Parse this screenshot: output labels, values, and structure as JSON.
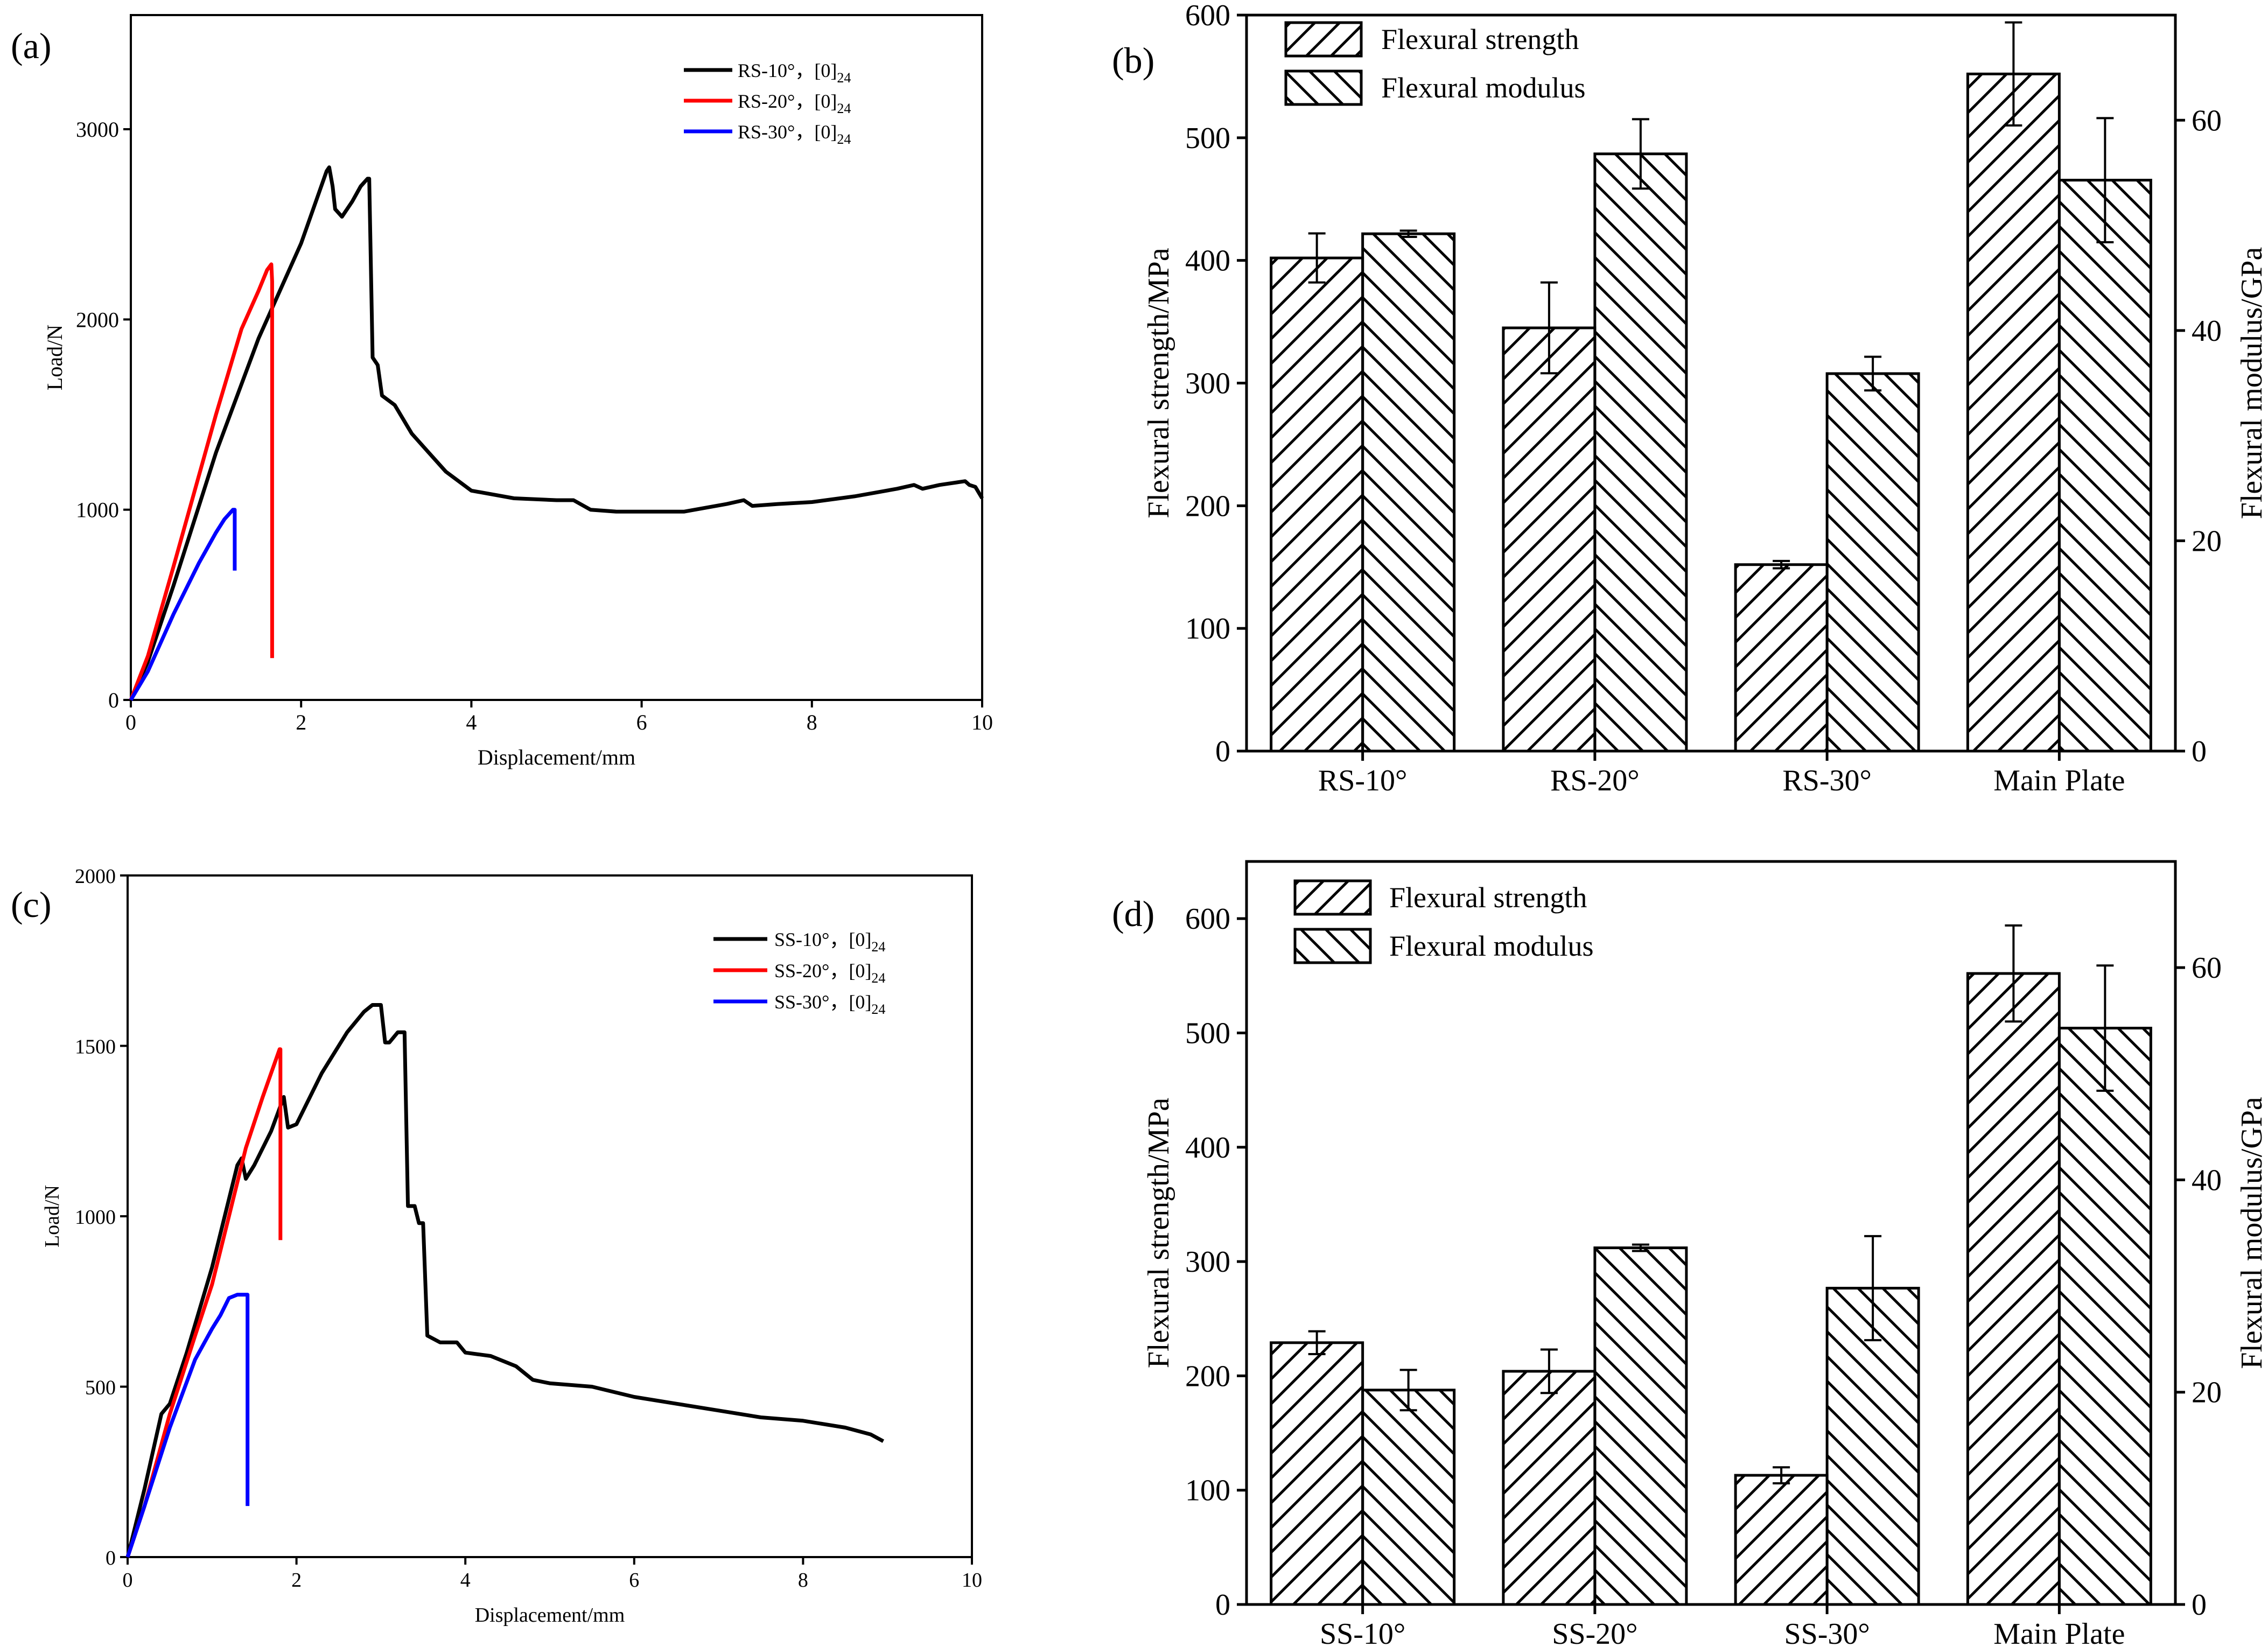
{
  "colors": {
    "black": "#000000",
    "red": "#ff0000",
    "blue": "#0000ff",
    "background": "#ffffff"
  },
  "chart_data": [
    {
      "id": "a",
      "panel_label": "(a)",
      "type": "line",
      "xlabel": "Displacement/mm",
      "ylabel": "Load/N",
      "xlim": [
        0,
        10
      ],
      "ylim": [
        0,
        3600
      ],
      "x_ticks": [
        0,
        2,
        4,
        6,
        8,
        10
      ],
      "y_ticks": [
        0,
        1000,
        2000,
        3000
      ],
      "legend_position": "top-right",
      "series": [
        {
          "name": "RS-10°",
          "layup": "[0]",
          "layup_sub": "24",
          "color": "#000000",
          "points": [
            [
              0,
              0
            ],
            [
              0.2,
              200
            ],
            [
              0.5,
              600
            ],
            [
              1,
              1300
            ],
            [
              1.5,
              1900
            ],
            [
              2,
              2400
            ],
            [
              2.3,
              2780
            ],
            [
              2.33,
              2800
            ],
            [
              2.37,
              2700
            ],
            [
              2.4,
              2580
            ],
            [
              2.48,
              2540
            ],
            [
              2.6,
              2620
            ],
            [
              2.7,
              2700
            ],
            [
              2.78,
              2740
            ],
            [
              2.8,
              2740
            ],
            [
              2.84,
              1800
            ],
            [
              2.9,
              1760
            ],
            [
              2.95,
              1600
            ],
            [
              3.1,
              1550
            ],
            [
              3.3,
              1400
            ],
            [
              3.5,
              1300
            ],
            [
              3.7,
              1200
            ],
            [
              4,
              1100
            ],
            [
              4.5,
              1060
            ],
            [
              5,
              1050
            ],
            [
              5.2,
              1050
            ],
            [
              5.4,
              1000
            ],
            [
              5.7,
              990
            ],
            [
              6,
              990
            ],
            [
              6.5,
              990
            ],
            [
              7,
              1030
            ],
            [
              7.2,
              1050
            ],
            [
              7.3,
              1020
            ],
            [
              7.6,
              1030
            ],
            [
              8,
              1040
            ],
            [
              8.5,
              1070
            ],
            [
              9,
              1110
            ],
            [
              9.2,
              1130
            ],
            [
              9.3,
              1110
            ],
            [
              9.5,
              1130
            ],
            [
              9.8,
              1150
            ],
            [
              9.85,
              1130
            ],
            [
              9.92,
              1120
            ],
            [
              10,
              1060
            ]
          ]
        },
        {
          "name": "RS-20°",
          "layup": "[0]",
          "layup_sub": "24",
          "color": "#ff0000",
          "points": [
            [
              0,
              0
            ],
            [
              0.2,
              230
            ],
            [
              0.5,
              700
            ],
            [
              1,
              1500
            ],
            [
              1.3,
              1950
            ],
            [
              1.5,
              2150
            ],
            [
              1.6,
              2260
            ],
            [
              1.65,
              2290
            ],
            [
              1.66,
              2200
            ],
            [
              1.66,
              220
            ]
          ]
        },
        {
          "name": "RS-30°",
          "layup": "[0]",
          "layup_sub": "24",
          "color": "#0000ff",
          "points": [
            [
              0,
              0
            ],
            [
              0.2,
              150
            ],
            [
              0.5,
              450
            ],
            [
              0.8,
              720
            ],
            [
              1,
              880
            ],
            [
              1.1,
              950
            ],
            [
              1.2,
              1000
            ],
            [
              1.22,
              1000
            ],
            [
              1.22,
              680
            ]
          ]
        }
      ]
    },
    {
      "id": "b",
      "panel_label": "(b)",
      "type": "bar",
      "categories": [
        "RS-10°",
        "RS-20°",
        "RS-30°",
        "Main Plate"
      ],
      "ylabel": "Flexural strength/MPa",
      "ylabel_right": "Flexural modulus/GPa",
      "ylim": [
        0,
        600
      ],
      "ylim_right": [
        0,
        70
      ],
      "y_ticks": [
        0,
        100,
        200,
        300,
        400,
        500,
        600
      ],
      "y_ticks_right": [
        0,
        20,
        40,
        60
      ],
      "legend_position": "top-left",
      "series": [
        {
          "name": "Flexural strength",
          "axis": "left",
          "hatch": "forward",
          "values": [
            402,
            345,
            152,
            552
          ],
          "errors": [
            20,
            37,
            3,
            42
          ]
        },
        {
          "name": "Flexural modulus",
          "axis": "right",
          "hatch": "back",
          "values": [
            49.2,
            56.8,
            35.9,
            54.3
          ],
          "errors": [
            0.3,
            3.3,
            1.6,
            5.9
          ]
        }
      ]
    },
    {
      "id": "c",
      "panel_label": "(c)",
      "type": "line",
      "xlabel": "Displacement/mm",
      "ylabel": "Load/N",
      "xlim": [
        0,
        10
      ],
      "ylim": [
        0,
        2000
      ],
      "x_ticks": [
        0,
        2,
        4,
        6,
        8,
        10
      ],
      "y_ticks": [
        0,
        500,
        1000,
        1500,
        2000
      ],
      "legend_position": "top-right",
      "series": [
        {
          "name": "SS-10°",
          "layup": "[0]",
          "layup_sub": "24",
          "color": "#000000",
          "points": [
            [
              0,
              0
            ],
            [
              0.2,
              200
            ],
            [
              0.4,
              420
            ],
            [
              0.5,
              450
            ],
            [
              0.7,
              600
            ],
            [
              1,
              850
            ],
            [
              1.3,
              1150
            ],
            [
              1.35,
              1170
            ],
            [
              1.4,
              1110
            ],
            [
              1.5,
              1150
            ],
            [
              1.7,
              1250
            ],
            [
              1.85,
              1350
            ],
            [
              1.9,
              1260
            ],
            [
              2,
              1270
            ],
            [
              2.3,
              1420
            ],
            [
              2.6,
              1540
            ],
            [
              2.8,
              1600
            ],
            [
              2.9,
              1620
            ],
            [
              3,
              1620
            ],
            [
              3.05,
              1510
            ],
            [
              3.1,
              1510
            ],
            [
              3.2,
              1540
            ],
            [
              3.28,
              1540
            ],
            [
              3.32,
              1030
            ],
            [
              3.4,
              1030
            ],
            [
              3.45,
              980
            ],
            [
              3.5,
              980
            ],
            [
              3.55,
              650
            ],
            [
              3.7,
              630
            ],
            [
              3.9,
              630
            ],
            [
              4,
              600
            ],
            [
              4.3,
              590
            ],
            [
              4.6,
              560
            ],
            [
              4.8,
              520
            ],
            [
              5,
              510
            ],
            [
              5.5,
              500
            ],
            [
              6,
              470
            ],
            [
              6.5,
              450
            ],
            [
              7,
              430
            ],
            [
              7.5,
              410
            ],
            [
              8,
              400
            ],
            [
              8.5,
              380
            ],
            [
              8.8,
              360
            ],
            [
              8.95,
              340
            ]
          ]
        },
        {
          "name": "SS-20°",
          "layup": "[0]",
          "layup_sub": "24",
          "color": "#ff0000",
          "points": [
            [
              0,
              0
            ],
            [
              0.2,
              150
            ],
            [
              0.5,
              420
            ],
            [
              0.8,
              650
            ],
            [
              1,
              800
            ],
            [
              1.2,
              1000
            ],
            [
              1.4,
              1200
            ],
            [
              1.6,
              1350
            ],
            [
              1.8,
              1490
            ],
            [
              1.81,
              1490
            ],
            [
              1.81,
              930
            ]
          ]
        },
        {
          "name": "SS-30°",
          "layup": "[0]",
          "layup_sub": "24",
          "color": "#0000ff",
          "points": [
            [
              0,
              0
            ],
            [
              0.2,
              150
            ],
            [
              0.5,
              380
            ],
            [
              0.8,
              580
            ],
            [
              1,
              670
            ],
            [
              1.1,
              710
            ],
            [
              1.2,
              760
            ],
            [
              1.3,
              770
            ],
            [
              1.4,
              770
            ],
            [
              1.42,
              770
            ],
            [
              1.42,
              150
            ]
          ]
        }
      ]
    },
    {
      "id": "d",
      "panel_label": "(d)",
      "type": "bar",
      "categories": [
        "SS-10°",
        "SS-20°",
        "SS-30°",
        "Main Plate"
      ],
      "ylabel": "Flexural strength/MPa",
      "ylabel_right": "Flexural modulus/GPa",
      "ylim": [
        0,
        650
      ],
      "ylim_right": [
        0,
        70
      ],
      "y_ticks": [
        0,
        100,
        200,
        300,
        400,
        500,
        600
      ],
      "y_ticks_right": [
        0,
        20,
        40,
        60
      ],
      "legend_position": "top-left",
      "series": [
        {
          "name": "Flexural strength",
          "axis": "left",
          "hatch": "forward",
          "values": [
            229,
            204,
            113,
            552
          ],
          "errors": [
            10,
            19,
            7,
            42
          ]
        },
        {
          "name": "Flexural modulus",
          "axis": "right",
          "hatch": "back",
          "values": [
            20.2,
            33.6,
            29.8,
            54.3
          ],
          "errors": [
            1.9,
            0.3,
            4.9,
            5.9
          ]
        }
      ]
    }
  ]
}
